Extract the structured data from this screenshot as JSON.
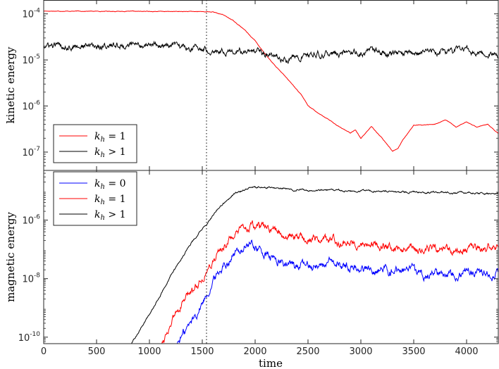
{
  "chart_data": {
    "type": "line",
    "shared_x": {
      "label": "time",
      "range": [
        0,
        4300
      ],
      "ticks": [
        0,
        500,
        1000,
        1500,
        2000,
        2500,
        3000,
        3500,
        4000
      ],
      "tick_labels": [
        "0",
        "500",
        "1000",
        "1500",
        "2000",
        "2500",
        "3000",
        "3500",
        "4000"
      ]
    },
    "marker_time": 1540,
    "panels": [
      {
        "id": "kinetic",
        "ylabel": "kinetic energy",
        "yscale": "log",
        "ylim": [
          4e-08,
          0.0002
        ],
        "yticks": [
          {
            "value": 1e-07,
            "base": "10",
            "exp": "-7"
          },
          {
            "value": 1e-06,
            "base": "10",
            "exp": "-6"
          },
          {
            "value": 1e-05,
            "base": "10",
            "exp": "-5"
          },
          {
            "value": 0.0001,
            "base": "10",
            "exp": "-4"
          }
        ],
        "legend": {
          "position": "bottom-left",
          "entries": [
            {
              "math": "k",
              "sub": "h",
              "rel": " = 1",
              "color": "#ff0000"
            },
            {
              "math": "k",
              "sub": "h",
              "rel": " > 1",
              "color": "#000000"
            }
          ]
        },
        "series": [
          {
            "color": "#ff0000",
            "noise": 0.004,
            "points": [
              [
                0,
                0.000115
              ],
              [
                500,
                0.000114
              ],
              [
                1000,
                0.000113
              ],
              [
                1500,
                0.000112
              ],
              [
                1600,
                0.00011
              ],
              [
                1700,
                9.5e-05
              ],
              [
                1800,
                7e-05
              ],
              [
                1900,
                4.5e-05
              ],
              [
                2000,
                2.6e-05
              ],
              [
                2100,
                1.3e-05
              ],
              [
                2200,
                7e-06
              ],
              [
                2300,
                4e-06
              ],
              [
                2400,
                2.2e-06
              ],
              [
                2450,
                1.6e-06
              ],
              [
                2500,
                1e-06
              ],
              [
                2600,
                7e-07
              ],
              [
                2700,
                5e-07
              ],
              [
                2800,
                3.5e-07
              ],
              [
                2900,
                2.6e-07
              ],
              [
                2950,
                3e-07
              ],
              [
                3000,
                2e-07
              ],
              [
                3100,
                3.6e-07
              ],
              [
                3200,
                2e-07
              ],
              [
                3300,
                1.05e-07
              ],
              [
                3350,
                1.2e-07
              ],
              [
                3400,
                1.9e-07
              ],
              [
                3500,
                3.8e-07
              ],
              [
                3700,
                4e-07
              ],
              [
                3800,
                5e-07
              ],
              [
                3900,
                3.5e-07
              ],
              [
                4000,
                4.5e-07
              ],
              [
                4100,
                3.5e-07
              ],
              [
                4200,
                4e-07
              ],
              [
                4300,
                2.5e-07
              ]
            ]
          },
          {
            "color": "#000000",
            "noise": 0.045,
            "points": [
              [
                0,
                2e-05
              ],
              [
                500,
                2e-05
              ],
              [
                1000,
                2.1e-05
              ],
              [
                1300,
                1.9e-05
              ],
              [
                1600,
                1.7e-05
              ],
              [
                2000,
                1.4e-05
              ],
              [
                2300,
                1.05e-05
              ],
              [
                2600,
                1.3e-05
              ],
              [
                3000,
                1.5e-05
              ],
              [
                3500,
                1.4e-05
              ],
              [
                4000,
                1.6e-05
              ],
              [
                4300,
                1.3e-05
              ]
            ]
          }
        ]
      },
      {
        "id": "magnetic",
        "ylabel": "magnetic energy",
        "yscale": "log",
        "ylim": [
          6e-11,
          5e-05
        ],
        "yticks": [
          {
            "value": 1e-10,
            "base": "10",
            "exp": "-10"
          },
          {
            "value": 1e-08,
            "base": "10",
            "exp": "-8"
          },
          {
            "value": 1e-06,
            "base": "10",
            "exp": "-6"
          }
        ],
        "legend": {
          "position": "top-left",
          "entries": [
            {
              "math": "k",
              "sub": "h",
              "rel": " = 0",
              "color": "#0000ff"
            },
            {
              "math": "k",
              "sub": "h",
              "rel": " = 1",
              "color": "#ff0000"
            },
            {
              "math": "k",
              "sub": "h",
              "rel": " > 1",
              "color": "#000000"
            }
          ]
        },
        "series": [
          {
            "color": "#0000ff",
            "noise": 0.1,
            "points": [
              [
                1260,
                6e-11
              ],
              [
                1400,
                3.5e-10
              ],
              [
                1500,
                1.5e-09
              ],
              [
                1600,
                8e-09
              ],
              [
                1700,
                3e-08
              ],
              [
                1800,
                7e-08
              ],
              [
                1900,
                1.2e-07
              ],
              [
                1950,
                1.5e-07
              ],
              [
                2000,
                1.3e-07
              ],
              [
                2100,
                6e-08
              ],
              [
                2300,
                3e-08
              ],
              [
                2500,
                2.8e-08
              ],
              [
                2700,
                3.2e-08
              ],
              [
                3000,
                2.3e-08
              ],
              [
                3300,
                2e-08
              ],
              [
                3600,
                1.5e-08
              ],
              [
                4000,
                1.8e-08
              ],
              [
                4300,
                1.6e-08
              ]
            ]
          },
          {
            "color": "#ff0000",
            "noise": 0.09,
            "points": [
              [
                1110,
                6e-11
              ],
              [
                1200,
                3e-10
              ],
              [
                1300,
                1.2e-09
              ],
              [
                1400,
                4e-09
              ],
              [
                1500,
                1.1e-08
              ],
              [
                1600,
                4e-08
              ],
              [
                1700,
                1.3e-07
              ],
              [
                1800,
                3e-07
              ],
              [
                1900,
                5e-07
              ],
              [
                1950,
                6e-07
              ],
              [
                2100,
                5.2e-07
              ],
              [
                2300,
                3e-07
              ],
              [
                2500,
                2.5e-07
              ],
              [
                2700,
                2.2e-07
              ],
              [
                3000,
                1.6e-07
              ],
              [
                3300,
                1.1e-07
              ],
              [
                3600,
                1e-07
              ],
              [
                4000,
                1e-07
              ],
              [
                4300,
                1.3e-07
              ]
            ]
          },
          {
            "color": "#000000",
            "noise": 0.02,
            "points": [
              [
                830,
                6e-11
              ],
              [
                1000,
                6e-10
              ],
              [
                1200,
                1.2e-08
              ],
              [
                1400,
                1.8e-07
              ],
              [
                1550,
                8e-07
              ],
              [
                1650,
                2.5e-06
              ],
              [
                1800,
                8e-06
              ],
              [
                1950,
                1.3e-05
              ],
              [
                2100,
                1.35e-05
              ],
              [
                2300,
                1.15e-05
              ],
              [
                2500,
                1.05e-05
              ],
              [
                3000,
                1e-05
              ],
              [
                3500,
                9e-06
              ],
              [
                4000,
                8.5e-06
              ],
              [
                4300,
                8e-06
              ]
            ]
          }
        ]
      }
    ]
  }
}
